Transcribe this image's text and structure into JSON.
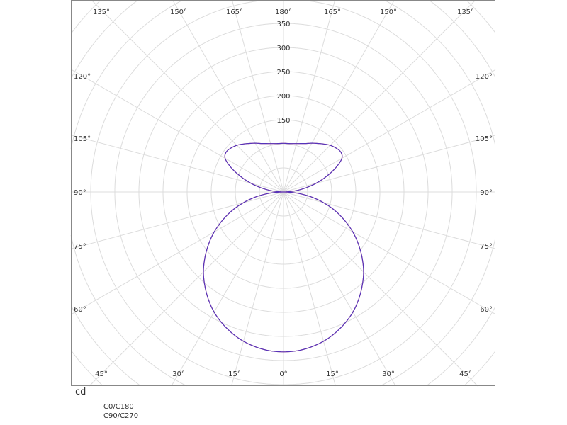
{
  "chart_data": {
    "type": "polar",
    "unit_label": "cd",
    "radial_ticks": [
      150,
      200,
      250,
      300,
      350
    ],
    "radial_ring_step": 50,
    "angle_labels_top": [
      "135°",
      "150°",
      "165°",
      "180°",
      "165°",
      "150°",
      "135°"
    ],
    "angle_labels_left": [
      "120°",
      "105°",
      "90°",
      "75°",
      "60°"
    ],
    "angle_labels_right": [
      "120°",
      "105°",
      "90°",
      "75°",
      "60°"
    ],
    "angle_labels_bottom": [
      "45°",
      "30°",
      "15°",
      "0°",
      "15°",
      "30°",
      "45°"
    ],
    "grid": true,
    "legend_position": "bottom-left",
    "gamma": [
      0,
      5,
      10,
      15,
      20,
      25,
      30,
      35,
      40,
      45,
      50,
      55,
      60,
      65,
      70,
      75,
      80,
      85,
      90,
      95,
      100,
      105,
      110,
      115,
      120,
      125,
      130,
      135,
      140,
      145,
      150,
      155,
      160,
      165,
      170,
      175,
      180
    ],
    "series": [
      {
        "name": "C0/C180",
        "color": "#e57373",
        "values": [
          332,
          331,
          327,
          321,
          312,
          301,
          288,
          272,
          254,
          235,
          213,
          190,
          166,
          140,
          114,
          86,
          58,
          29,
          0,
          22,
          45,
          70,
          95,
          120,
          140,
          145,
          142,
          137,
          130,
          123,
          117,
          111,
          107,
          104,
          102,
          101,
          101
        ]
      },
      {
        "name": "C90/C270",
        "color": "#5533bb",
        "values": [
          332,
          331,
          327,
          321,
          312,
          301,
          288,
          272,
          254,
          235,
          213,
          190,
          166,
          140,
          114,
          86,
          58,
          29,
          0,
          22,
          45,
          70,
          95,
          120,
          140,
          145,
          142,
          137,
          130,
          123,
          117,
          111,
          107,
          104,
          102,
          101,
          101
        ]
      }
    ]
  }
}
